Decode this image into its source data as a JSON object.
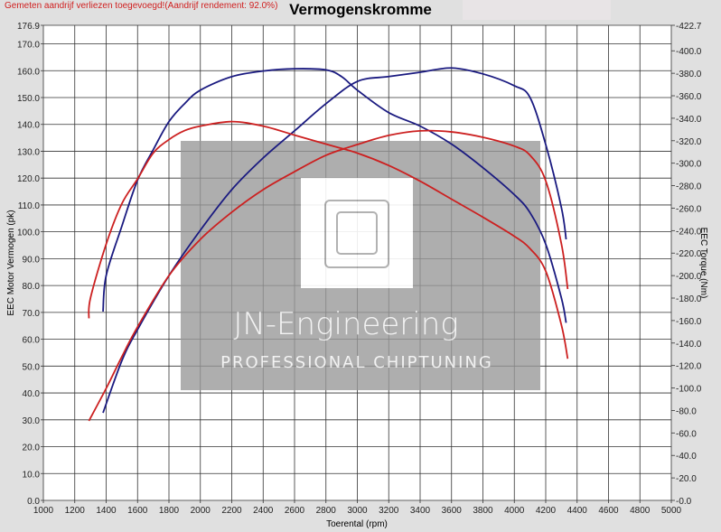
{
  "header": {
    "note": "Gemeten aandrijf verliezen toegevoegd!(Aandrijf rendement: 92.0%)",
    "title": "Vermogenskromme"
  },
  "watermark": {
    "brand": "JN-Engineering",
    "tagline": "PROFESSIONAL CHIPTUNING"
  },
  "chart_data": {
    "type": "line",
    "title": "Vermogenskromme",
    "xlabel": "Toerental (rpm)",
    "ylabel": "EEC Motor Vermogen (pk)",
    "y2label": "EEC Torque (Nm)",
    "xlim": [
      1000,
      5000
    ],
    "ylim": [
      0,
      176.9
    ],
    "y2lim": [
      0,
      422.7
    ],
    "grid": true,
    "xticks": [
      "1000",
      "1200",
      "1400",
      "1600",
      "1800",
      "2000",
      "2200",
      "2400",
      "2600",
      "2800",
      "3000",
      "3200",
      "3400",
      "3600",
      "3800",
      "4000",
      "4200",
      "4400",
      "4600",
      "4800",
      "5000"
    ],
    "yticks": [
      "0.0",
      "10.0",
      "20.0",
      "30.0",
      "40.0",
      "50.0",
      "60.0",
      "70.0",
      "80.0",
      "90.0",
      "100.0",
      "110.0",
      "120.0",
      "130.0",
      "140.0",
      "150.0",
      "160.0",
      "170.0",
      "176.9"
    ],
    "y2ticks": [
      "0.0",
      "20.0",
      "40.0",
      "60.0",
      "80.0",
      "100.0",
      "120.0",
      "140.0",
      "160.0",
      "180.0",
      "200.0",
      "220.0",
      "240.0",
      "260.0",
      "280.0",
      "300.0",
      "320.0",
      "340.0",
      "360.0",
      "380.0",
      "400.0",
      "422.7"
    ],
    "series": [
      {
        "axis": "left",
        "color": "#1a1a80",
        "x": [
          1380,
          1500,
          1600,
          1800,
          2000,
          2200,
          2400,
          2600,
          2800,
          3000,
          3200,
          3400,
          3600,
          3800,
          4000,
          4100,
          4200,
          4300,
          4330
        ],
        "y": [
          32.6,
          52,
          63.6,
          83.7,
          100.6,
          115.7,
          127.5,
          137.6,
          147.7,
          156,
          157.8,
          159.4,
          161,
          158.8,
          154.4,
          150,
          132.5,
          109,
          97.2
        ]
      },
      {
        "axis": "right",
        "color": "#1a1a80",
        "x": [
          1380,
          1400,
          1500,
          1600,
          1700,
          1800,
          1900,
          2000,
          2200,
          2400,
          2600,
          2800,
          2900,
          3000,
          3200,
          3400,
          3600,
          3800,
          4000,
          4100,
          4200,
          4300,
          4330
        ],
        "y": [
          168,
          200,
          244,
          285,
          312,
          337,
          353,
          365,
          377,
          382,
          384,
          383,
          377,
          365,
          345,
          333,
          317,
          296,
          272,
          256,
          228,
          180,
          158
        ]
      },
      {
        "axis": "left",
        "color": "#cc2020",
        "x": [
          1290,
          1400,
          1500,
          1600,
          1800,
          2000,
          2200,
          2400,
          2600,
          2800,
          3000,
          3200,
          3400,
          3600,
          3800,
          4000,
          4100,
          4200,
          4300,
          4340
        ],
        "y": [
          29.6,
          41.7,
          53.5,
          64.6,
          83.7,
          97.2,
          107.3,
          115.7,
          122.4,
          128.5,
          132.5,
          135.9,
          137.6,
          137.2,
          135.2,
          131.9,
          128.5,
          119,
          95.5,
          78.7
        ]
      },
      {
        "axis": "right",
        "color": "#cc2020",
        "x": [
          1290,
          1300,
          1400,
          1500,
          1600,
          1700,
          1800,
          1900,
          2000,
          2200,
          2400,
          2600,
          2800,
          3000,
          3200,
          3400,
          3600,
          3800,
          4000,
          4100,
          4200,
          4300,
          4340
        ],
        "y": [
          162,
          180,
          228,
          264,
          286,
          309,
          321,
          329,
          333,
          337,
          333,
          325,
          317,
          309,
          298,
          284,
          268,
          252,
          235,
          224,
          204,
          156,
          126
        ]
      }
    ]
  }
}
